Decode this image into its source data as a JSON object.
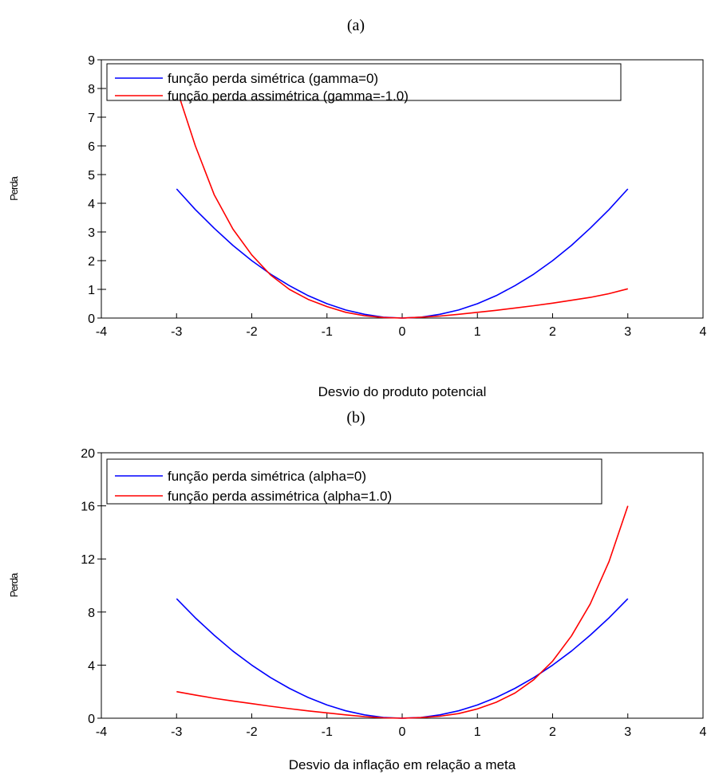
{
  "chart_data": [
    {
      "type": "line",
      "caption": "(a)",
      "xlabel": "Desvio do produto potencial",
      "ylabel": "Perda",
      "xlim": [
        -4,
        4
      ],
      "ylim": [
        0,
        9
      ],
      "xticks": [
        "-4",
        "-3",
        "-2",
        "-1",
        "0",
        "1",
        "2",
        "3",
        "4"
      ],
      "yticks": [
        "0",
        "1",
        "2",
        "3",
        "4",
        "5",
        "6",
        "7",
        "8",
        "9"
      ],
      "legend_position": "top-left",
      "x": [
        -3.0,
        -2.75,
        -2.5,
        -2.25,
        -2.0,
        -1.75,
        -1.5,
        -1.25,
        -1.0,
        -0.75,
        -0.5,
        -0.25,
        0.0,
        0.25,
        0.5,
        0.75,
        1.0,
        1.25,
        1.5,
        1.75,
        2.0,
        2.25,
        2.5,
        2.75,
        3.0
      ],
      "series": [
        {
          "name": "função perda simétrica (gamma=0)",
          "color": "#0000ff",
          "values": [
            4.5,
            3.78,
            3.13,
            2.53,
            2.0,
            1.53,
            1.13,
            0.78,
            0.5,
            0.28,
            0.13,
            0.03,
            0.0,
            0.03,
            0.13,
            0.28,
            0.5,
            0.78,
            1.13,
            1.53,
            2.0,
            2.53,
            3.13,
            3.78,
            4.5
          ]
        },
        {
          "name": "função perda assimétrica (gamma=-1.0)",
          "color": "#ff0000",
          "values": [
            8.0,
            6.0,
            4.3,
            3.1,
            2.2,
            1.5,
            1.0,
            0.65,
            0.4,
            0.2,
            0.08,
            0.02,
            0.0,
            0.03,
            0.07,
            0.13,
            0.2,
            0.27,
            0.35,
            0.43,
            0.52,
            0.62,
            0.72,
            0.85,
            1.02
          ]
        }
      ]
    },
    {
      "type": "line",
      "caption": "(b)",
      "xlabel": "Desvio da inflação em relação a meta",
      "ylabel": "Perda",
      "xlim": [
        -4,
        4
      ],
      "ylim": [
        0,
        20
      ],
      "xticks": [
        "-4",
        "-3",
        "-2",
        "-1",
        "0",
        "1",
        "2",
        "3",
        "4"
      ],
      "yticks": [
        "0",
        "4",
        "8",
        "12",
        "16",
        "20"
      ],
      "legend_position": "top-left",
      "x": [
        -3.0,
        -2.75,
        -2.5,
        -2.25,
        -2.0,
        -1.75,
        -1.5,
        -1.25,
        -1.0,
        -0.75,
        -0.5,
        -0.25,
        0.0,
        0.25,
        0.5,
        0.75,
        1.0,
        1.25,
        1.5,
        1.75,
        2.0,
        2.25,
        2.5,
        2.75,
        3.0
      ],
      "series": [
        {
          "name": "função perda simétrica (alpha=0)",
          "color": "#0000ff",
          "values": [
            9.0,
            7.56,
            6.25,
            5.06,
            4.0,
            3.06,
            2.25,
            1.56,
            1.0,
            0.56,
            0.25,
            0.06,
            0.0,
            0.06,
            0.25,
            0.56,
            1.0,
            1.56,
            2.25,
            3.06,
            4.0,
            5.06,
            6.25,
            7.56,
            9.0
          ]
        },
        {
          "name": "função perda assimétrica (alpha=1.0)",
          "color": "#ff0000",
          "values": [
            2.0,
            1.75,
            1.5,
            1.3,
            1.1,
            0.9,
            0.72,
            0.55,
            0.4,
            0.25,
            0.12,
            0.03,
            0.0,
            0.05,
            0.15,
            0.35,
            0.7,
            1.2,
            1.9,
            2.9,
            4.3,
            6.2,
            8.6,
            11.8,
            16.0
          ]
        }
      ]
    }
  ]
}
